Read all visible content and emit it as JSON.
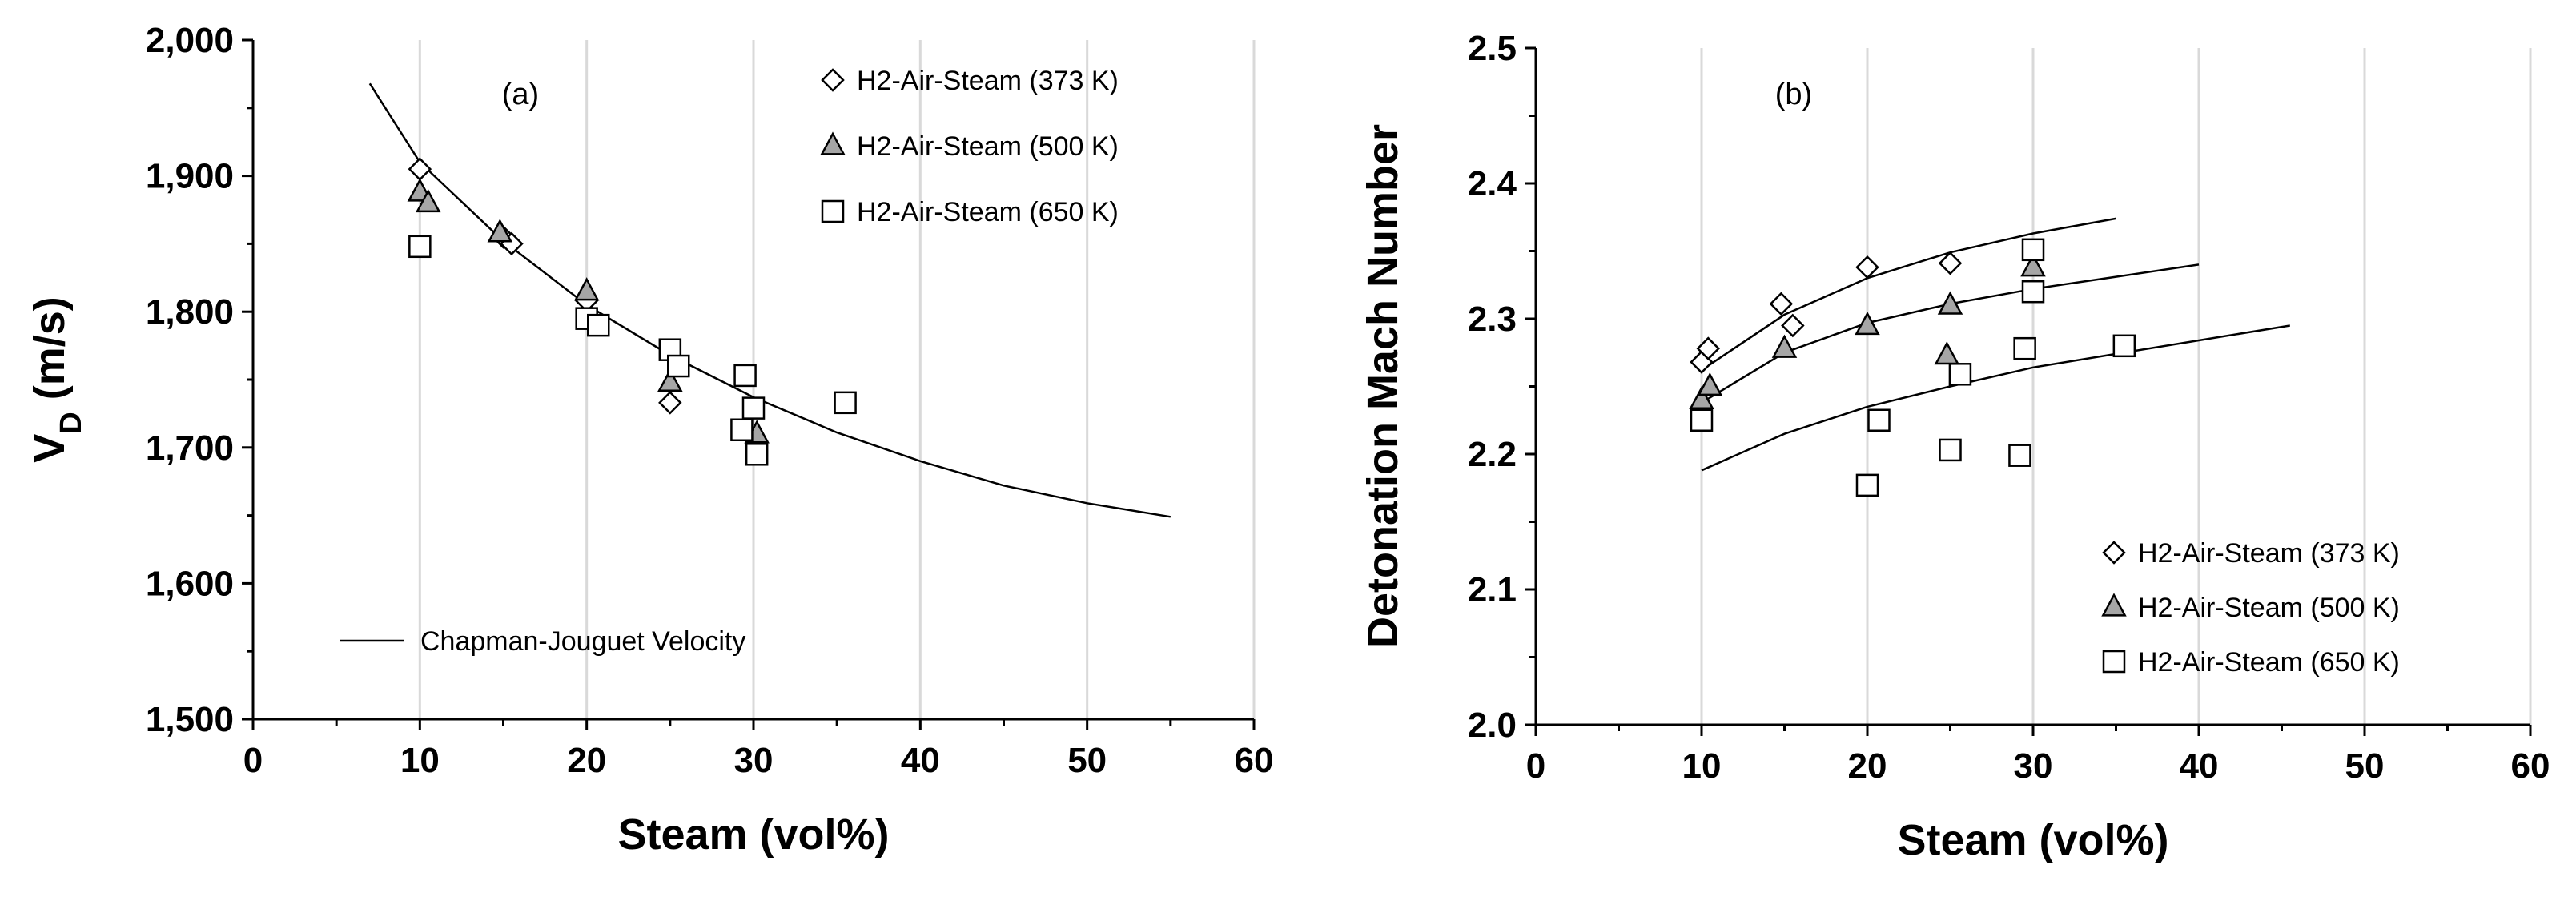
{
  "chart_data": [
    {
      "type": "scatter",
      "panel_label": "(a)",
      "xlabel": "Steam (vol%)",
      "ylabel_main": "V",
      "ylabel_sub": "D",
      "ylabel_rest": " (m/s)",
      "xlim": [
        0,
        60
      ],
      "ylim": [
        1500,
        2000
      ],
      "xticks": [
        0,
        10,
        20,
        30,
        40,
        50,
        60
      ],
      "yticks": [
        1500,
        1600,
        1700,
        1800,
        1900,
        2000
      ],
      "ytick_labels": [
        "1,500",
        "1,600",
        "1,700",
        "1,800",
        "1,900",
        "2,000"
      ],
      "grid": "vertical",
      "legend_position": "top-right",
      "series": [
        {
          "name": "H2-Air-Steam (373 K)",
          "marker": "diamond",
          "fill": "#ffffff",
          "points": [
            [
              10,
              1905
            ],
            [
              15,
              1855
            ],
            [
              15.5,
              1850
            ],
            [
              20,
              1808
            ],
            [
              25,
              1733
            ]
          ]
        },
        {
          "name": "H2-Air-Steam (500 K)",
          "marker": "triangle",
          "fill": "#a6a6a6",
          "points": [
            [
              10,
              1888
            ],
            [
              10.5,
              1880
            ],
            [
              14.8,
              1858
            ],
            [
              20,
              1815
            ],
            [
              25,
              1748
            ],
            [
              30.2,
              1710
            ]
          ]
        },
        {
          "name": "H2-Air-Steam (650 K)",
          "marker": "square",
          "fill": "#ffffff",
          "points": [
            [
              10,
              1848
            ],
            [
              20,
              1795
            ],
            [
              20.7,
              1790
            ],
            [
              25,
              1772
            ],
            [
              25.5,
              1760
            ],
            [
              29.5,
              1753
            ],
            [
              29.3,
              1713
            ],
            [
              30,
              1729
            ],
            [
              30.2,
              1695
            ],
            [
              35.5,
              1733
            ]
          ]
        }
      ],
      "lines": [
        {
          "name": "Chapman-Jouguet Velocity",
          "points": [
            [
              7,
              1968
            ],
            [
              10,
              1910
            ],
            [
              15,
              1852
            ],
            [
              20,
              1805
            ],
            [
              25,
              1768
            ],
            [
              30,
              1737
            ],
            [
              35,
              1711
            ],
            [
              40,
              1690
            ],
            [
              45,
              1672
            ],
            [
              50,
              1659
            ],
            [
              55,
              1649
            ]
          ]
        }
      ],
      "line_legend_position": "bottom-left"
    },
    {
      "type": "scatter",
      "panel_label": "(b)",
      "xlabel": "Steam (vol%)",
      "ylabel_main": "Detonation Mach Number",
      "ylabel_sub": "",
      "ylabel_rest": "",
      "xlim": [
        0,
        60
      ],
      "ylim": [
        2.0,
        2.5
      ],
      "xticks": [
        0,
        10,
        20,
        30,
        40,
        50,
        60
      ],
      "yticks": [
        2.0,
        2.1,
        2.2,
        2.3,
        2.4,
        2.5
      ],
      "ytick_labels": [
        "2.0",
        "2.1",
        "2.2",
        "2.3",
        "2.4",
        "2.5"
      ],
      "grid": "vertical",
      "legend_position": "bottom-right",
      "series": [
        {
          "name": "H2-Air-Steam (373 K)",
          "marker": "diamond",
          "fill": "#ffffff",
          "points": [
            [
              10,
              2.268
            ],
            [
              10.4,
              2.278
            ],
            [
              14.8,
              2.311
            ],
            [
              15.5,
              2.295
            ],
            [
              20,
              2.338
            ],
            [
              25,
              2.341
            ]
          ]
        },
        {
          "name": "H2-Air-Steam (500 K)",
          "marker": "triangle",
          "fill": "#a6a6a6",
          "points": [
            [
              10,
              2.24
            ],
            [
              10.5,
              2.25
            ],
            [
              15,
              2.278
            ],
            [
              20,
              2.295
            ],
            [
              25,
              2.31
            ],
            [
              24.8,
              2.273
            ],
            [
              30,
              2.338
            ]
          ]
        },
        {
          "name": "H2-Air-Steam (650 K)",
          "marker": "square",
          "fill": "#ffffff",
          "points": [
            [
              10,
              2.225
            ],
            [
              20,
              2.177
            ],
            [
              20.7,
              2.225
            ],
            [
              25,
              2.203
            ],
            [
              25.6,
              2.259
            ],
            [
              29.2,
              2.199
            ],
            [
              29.5,
              2.278
            ],
            [
              30,
              2.32
            ],
            [
              30,
              2.351
            ],
            [
              35.5,
              2.28
            ]
          ]
        }
      ],
      "lines": [
        {
          "points": [
            [
              10,
              2.262
            ],
            [
              15,
              2.303
            ],
            [
              20,
              2.33
            ],
            [
              25,
              2.349
            ],
            [
              30,
              2.363
            ],
            [
              35,
              2.374
            ]
          ]
        },
        {
          "points": [
            [
              10,
              2.238
            ],
            [
              15,
              2.275
            ],
            [
              20,
              2.297
            ],
            [
              25,
              2.311
            ],
            [
              30,
              2.322
            ],
            [
              35,
              2.331
            ],
            [
              40,
              2.34
            ]
          ]
        },
        {
          "points": [
            [
              10,
              2.188
            ],
            [
              15,
              2.215
            ],
            [
              20,
              2.235
            ],
            [
              25,
              2.25
            ],
            [
              30,
              2.264
            ],
            [
              35,
              2.274
            ],
            [
              40,
              2.284
            ],
            [
              45.5,
              2.295
            ]
          ]
        }
      ]
    }
  ]
}
